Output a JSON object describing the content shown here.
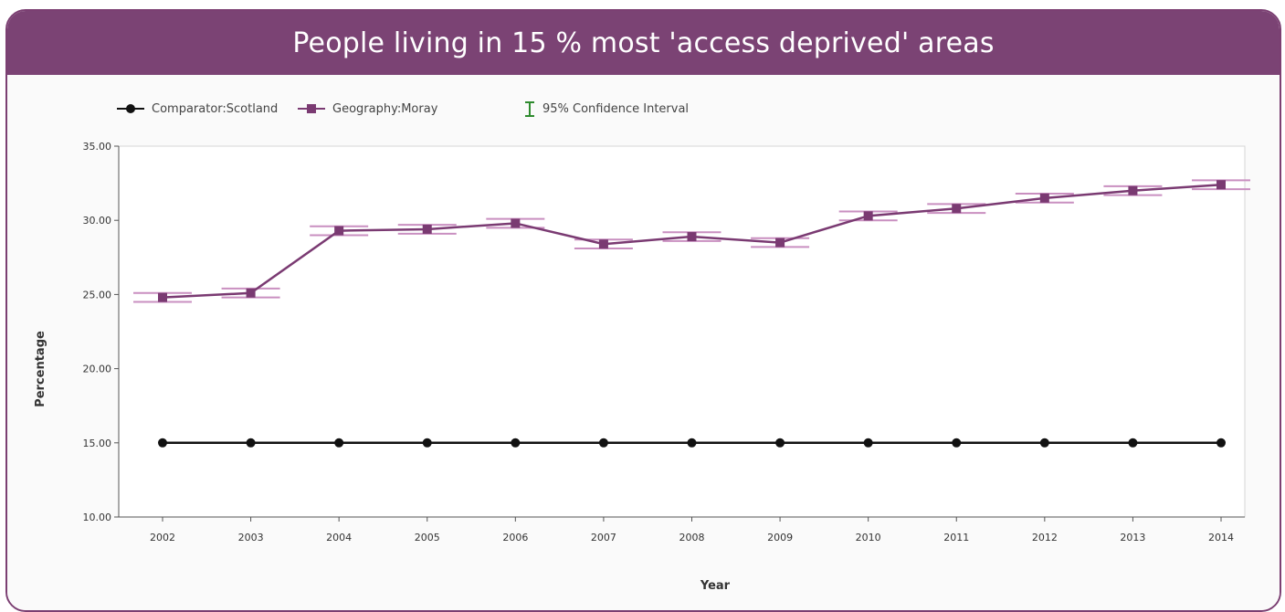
{
  "header": {
    "title": "People living in 15 % most 'access deprived' areas"
  },
  "legend": {
    "comparator": "Comparator:Scotland",
    "geography": "Geography:Moray",
    "ci": "95% Confidence Interval"
  },
  "colors": {
    "comparator": "#111111",
    "geography": "#7a3a72",
    "ci": "#c98fc0",
    "ci_legend": "#2e8b2e",
    "header": "#7b4374"
  },
  "chart_data": {
    "type": "line",
    "xlabel": "Year",
    "ylabel": "Percentage",
    "ylim": [
      10,
      35
    ],
    "yticks": [
      "10.00",
      "15.00",
      "20.00",
      "25.00",
      "30.00",
      "35.00"
    ],
    "categories": [
      "2002",
      "2003",
      "2004",
      "2005",
      "2006",
      "2007",
      "2008",
      "2009",
      "2010",
      "2011",
      "2012",
      "2013",
      "2014"
    ],
    "series": [
      {
        "name": "Comparator:Scotland",
        "values": [
          15.0,
          15.0,
          15.0,
          15.0,
          15.0,
          15.0,
          15.0,
          15.0,
          15.0,
          15.0,
          15.0,
          15.0,
          15.0
        ]
      },
      {
        "name": "Geography:Moray",
        "values": [
          24.8,
          25.1,
          29.3,
          29.4,
          29.8,
          28.4,
          28.9,
          28.5,
          30.3,
          30.8,
          31.5,
          32.0,
          32.4
        ],
        "ci_lower": [
          24.5,
          24.8,
          29.0,
          29.1,
          29.5,
          28.1,
          28.6,
          28.2,
          30.0,
          30.5,
          31.2,
          31.7,
          32.1
        ],
        "ci_upper": [
          25.1,
          25.4,
          29.6,
          29.7,
          30.1,
          28.7,
          29.2,
          28.8,
          30.6,
          31.1,
          31.8,
          32.3,
          32.7
        ]
      }
    ],
    "grid": false,
    "legend_position": "top-left"
  }
}
